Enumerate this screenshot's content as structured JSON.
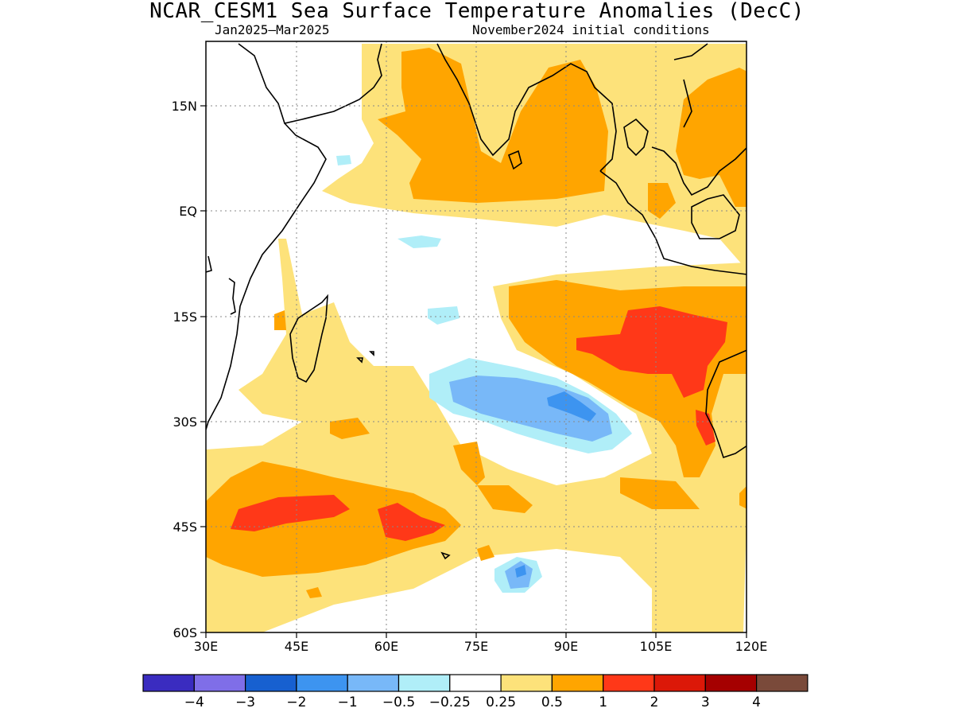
{
  "title": "NCAR_CESM1 Sea Surface Temperature Anomalies (DecC)",
  "subtitle_left": "Jan2025–Mar2025",
  "subtitle_right": "November2024 initial conditions",
  "map": {
    "projection": "lat-lon",
    "lon_range": [
      30,
      120
    ],
    "lat_range": [
      -60,
      24
    ],
    "grid": "dotted",
    "lat_ticks": [
      {
        "value": 15,
        "label": "15N"
      },
      {
        "value": 0,
        "label": "EQ"
      },
      {
        "value": -15,
        "label": "15S"
      },
      {
        "value": -30,
        "label": "30S"
      },
      {
        "value": -45,
        "label": "45S"
      },
      {
        "value": -60,
        "label": "60S"
      }
    ],
    "lon_ticks": [
      {
        "value": 30,
        "label": "30E"
      },
      {
        "value": 45,
        "label": "45E"
      },
      {
        "value": 60,
        "label": "60E"
      },
      {
        "value": 75,
        "label": "75E"
      },
      {
        "value": 90,
        "label": "90E"
      },
      {
        "value": 105,
        "label": "105E"
      },
      {
        "value": 120,
        "label": "120E"
      }
    ]
  },
  "colorbar": {
    "colors": [
      "#3a2cc0",
      "#7f6ee8",
      "#1760d0",
      "#3d94f0",
      "#78b8f8",
      "#b0eef8",
      "#ffffff",
      "#fde27a",
      "#ffa500",
      "#ff3818",
      "#dc1808",
      "#a50000",
      "#7a4a3a"
    ],
    "labels": [
      "−4",
      "−3",
      "−2",
      "−1",
      "−0.5",
      "−0.25",
      "0.25",
      "0.5",
      "1",
      "2",
      "3",
      "4"
    ]
  }
}
